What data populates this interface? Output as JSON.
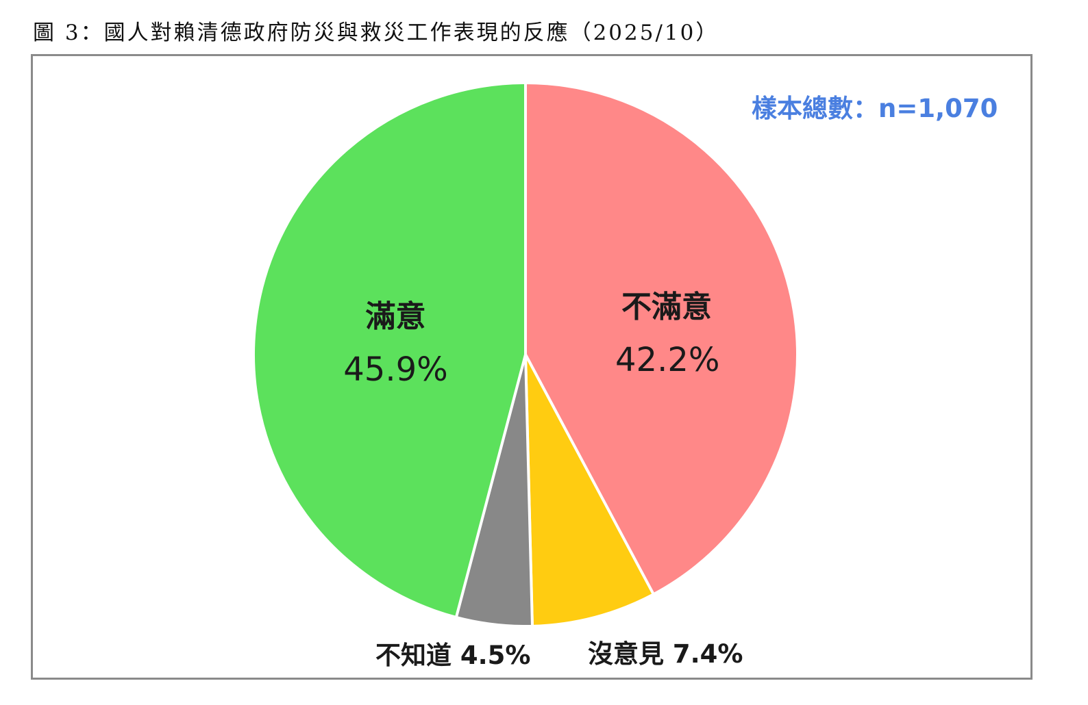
{
  "title": "圖 3：國人對賴清德政府防災與救災工作表現的反應（2025/10）",
  "sample_note": "樣本總數：n=1,070",
  "colors": {
    "dissatisfied": "#ff8888",
    "no_opinion": "#ffcc11",
    "dont_know": "#888888",
    "satisfied": "#5ce15c",
    "sample_text": "#4a7fe0"
  },
  "labels": {
    "dissatisfied": {
      "name": "不滿意",
      "value": "42.2%"
    },
    "satisfied": {
      "name": "滿意",
      "value": "45.9%"
    },
    "dont_know": {
      "text": "不知道 4.5%"
    },
    "no_opinion": {
      "text": "沒意見 7.4%"
    }
  },
  "chart_data": {
    "type": "pie",
    "title": "圖 3：國人對賴清德政府防災與救災工作表現的反應（2025/10）",
    "annotation": "樣本總數：n=1,070",
    "start_angle": "12 o'clock, clockwise",
    "categories": [
      "不滿意",
      "沒意見",
      "不知道",
      "滿意"
    ],
    "values": [
      42.2,
      7.4,
      4.5,
      45.9
    ],
    "colors": [
      "#ff8888",
      "#ffcc11",
      "#888888",
      "#5ce15c"
    ],
    "legend": "none (data labels on/near slices)"
  }
}
